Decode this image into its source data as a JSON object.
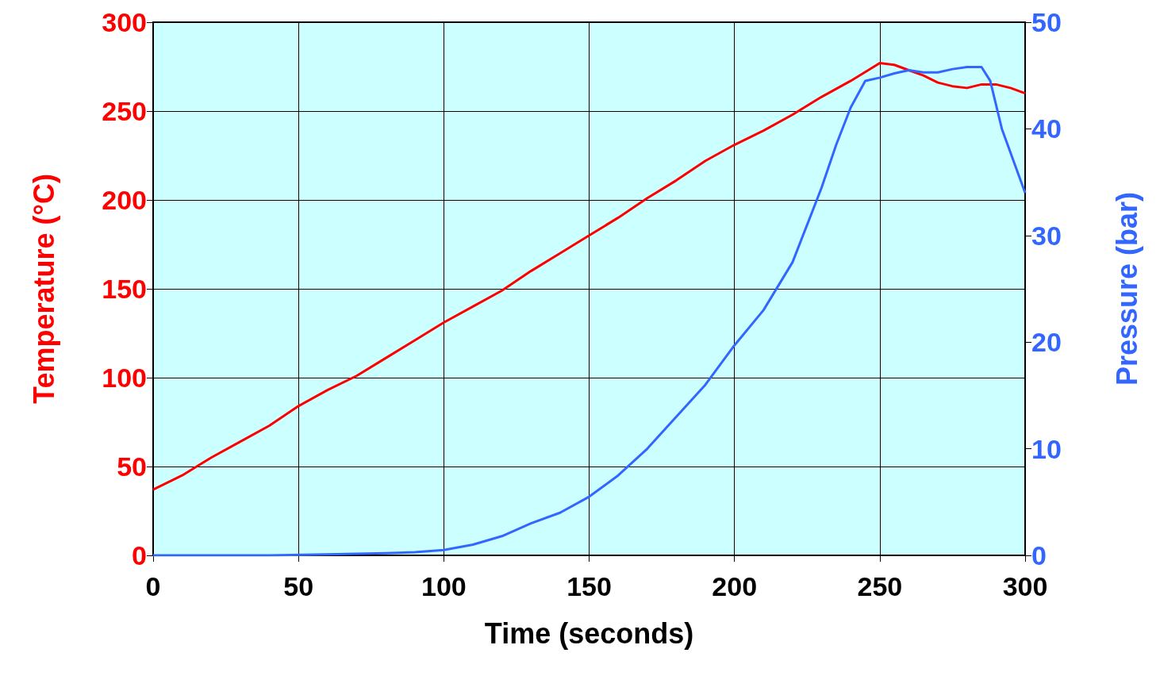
{
  "chart_data": {
    "type": "line",
    "xlabel": "Time (seconds)",
    "ylabel": "Temperature (°C)",
    "y2label": "Pressure (bar)",
    "xlim": [
      0,
      300
    ],
    "xticks": [
      0,
      50,
      100,
      150,
      200,
      250,
      300
    ],
    "ylim": [
      0,
      300
    ],
    "yticks": [
      0,
      50,
      100,
      150,
      200,
      250,
      300
    ],
    "y2lim": [
      0,
      50
    ],
    "y2ticks": [
      0,
      10,
      20,
      30,
      40,
      50
    ],
    "grid": true,
    "marker": "none",
    "line_style": "solid",
    "series": [
      {
        "color": "#ff0000",
        "x": [
          0,
          10,
          20,
          30,
          40,
          50,
          60,
          70,
          80,
          90,
          100,
          110,
          120,
          130,
          140,
          150,
          160,
          170,
          180,
          190,
          200,
          210,
          220,
          230,
          240,
          245,
          250,
          255,
          260,
          265,
          270,
          275,
          280,
          285,
          290,
          295,
          300
        ],
        "values": [
          37,
          45,
          55,
          64,
          73,
          84,
          93,
          101,
          111,
          121,
          131,
          140,
          149,
          160,
          170,
          180,
          190,
          201,
          211,
          222,
          231,
          239,
          248,
          258,
          267,
          272,
          277,
          276,
          273,
          270,
          266,
          264,
          263,
          265,
          265,
          263,
          260
        ]
      },
      {
        "color": "#3366ff",
        "axis": "y2",
        "x": [
          0,
          20,
          40,
          60,
          80,
          90,
          100,
          110,
          120,
          130,
          140,
          150,
          160,
          170,
          180,
          190,
          200,
          210,
          220,
          225,
          230,
          235,
          240,
          245,
          250,
          255,
          260,
          265,
          270,
          275,
          280,
          285,
          288,
          292,
          296,
          300
        ],
        "values": [
          0,
          0,
          0,
          0.1,
          0.2,
          0.3,
          0.5,
          1,
          1.8,
          3,
          4,
          5.5,
          7.5,
          10,
          13,
          16,
          19.7,
          23,
          27.5,
          31,
          34.5,
          38.5,
          42,
          44.5,
          44.8,
          45.2,
          45.5,
          45.3,
          45.3,
          45.6,
          45.8,
          45.8,
          44.5,
          40,
          37,
          34
        ]
      }
    ]
  }
}
